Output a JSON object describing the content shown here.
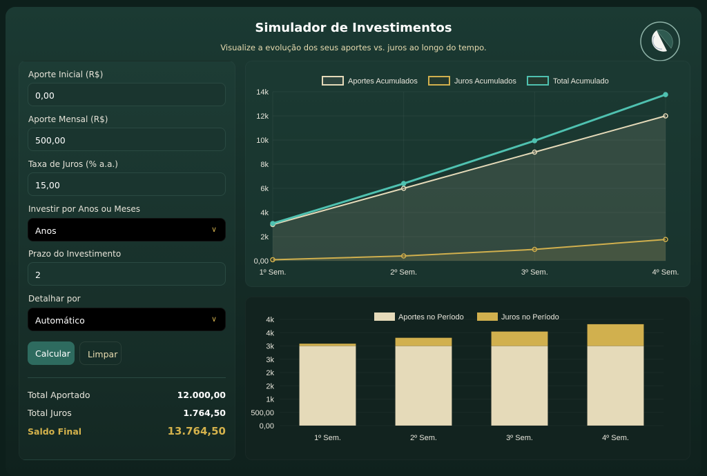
{
  "header": {
    "title": "Simulador de Investimentos",
    "subtitle": "Visualize a evolução dos seus aportes vs. juros ao longo do tempo."
  },
  "form": {
    "aporte_inicial": {
      "label": "Aporte Inicial (R$)",
      "value": "0,00"
    },
    "aporte_mensal": {
      "label": "Aporte Mensal (R$)",
      "value": "500,00"
    },
    "taxa": {
      "label": "Taxa de Juros (% a.a.)",
      "value": "15,00"
    },
    "investir_por": {
      "label": "Investir por Anos ou Meses",
      "value": "Anos"
    },
    "prazo": {
      "label": "Prazo do Investimento",
      "value": "2"
    },
    "detalhar": {
      "label": "Detalhar por",
      "value": "Automático"
    },
    "calcular": "Calcular",
    "limpar": "Limpar"
  },
  "results": {
    "total_aportado": {
      "label": "Total Aportado",
      "value": "12.000,00"
    },
    "total_juros": {
      "label": "Total Juros",
      "value": "1.764,50"
    },
    "saldo_final": {
      "label": "Saldo Final",
      "value": "13.764,50"
    }
  },
  "colors": {
    "teal": "#4fc1b0",
    "cream": "#e5dab9",
    "gold": "#d1b04e",
    "accent_button": "#2e6b5f"
  },
  "chart_data": [
    {
      "type": "line",
      "categories": [
        "1º Sem.",
        "2º Sem.",
        "3º Sem.",
        "4º Sem."
      ],
      "ylim": [
        0,
        14000
      ],
      "yticks": [
        0,
        2000,
        4000,
        6000,
        8000,
        10000,
        12000,
        14000
      ],
      "ytick_labels": [
        "0,00",
        "2k",
        "4k",
        "6k",
        "8k",
        "10k",
        "12k",
        "14k"
      ],
      "legend": "top",
      "grid": true,
      "series": [
        {
          "name": "Aportes Acumulados",
          "values": [
            3000,
            6000,
            9000,
            12000
          ],
          "color": "#e5dab9",
          "fill": true
        },
        {
          "name": "Juros Acumulados",
          "values": [
            88,
            398,
            943,
            1764.5
          ],
          "color": "#d1b04e",
          "fill": true
        },
        {
          "name": "Total Acumulado",
          "values": [
            3088,
            6398,
            9943,
            13764.5
          ],
          "color": "#4fc1b0",
          "fill": false
        }
      ]
    },
    {
      "type": "bar",
      "stacked": true,
      "categories": [
        "1º Sem.",
        "2º Sem.",
        "3º Sem.",
        "4º Sem."
      ],
      "ylim": [
        0,
        4000
      ],
      "yticks": [
        0,
        500,
        1000,
        1500,
        2000,
        2500,
        3000,
        3500,
        4000
      ],
      "ytick_labels": [
        "0,00",
        "500,00",
        "1k",
        "2k",
        "2k",
        "3k",
        "3k",
        "4k",
        "4k"
      ],
      "legend": "top",
      "grid": true,
      "series": [
        {
          "name": "Aportes no Período",
          "values": [
            3000,
            3000,
            3000,
            3000
          ],
          "color": "#e5dab9"
        },
        {
          "name": "Juros no Período",
          "values": [
            88,
            310,
            545,
            821.5
          ],
          "color": "#d1b04e"
        }
      ]
    }
  ]
}
